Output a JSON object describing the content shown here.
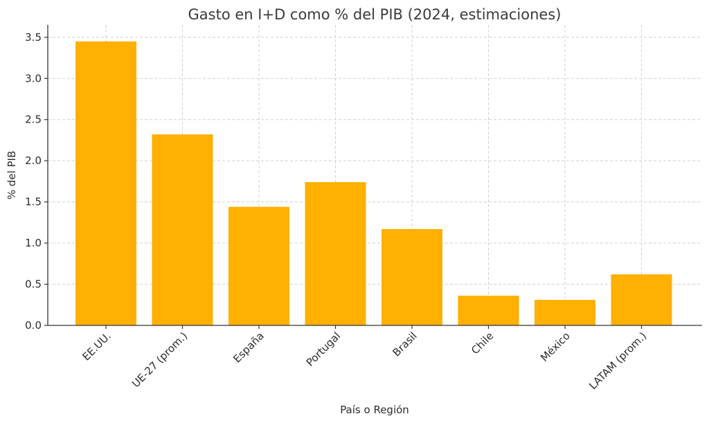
{
  "chart_data": {
    "type": "bar",
    "title": "Gasto en I+D como % del PIB (2024, estimaciones)",
    "xlabel": "País o Región",
    "ylabel": "% del PIB",
    "categories": [
      "EE.UU.",
      "UE-27 (prom.)",
      "España",
      "Portugal",
      "Brasil",
      "Chile",
      "México",
      "LATAM (prom.)"
    ],
    "values": [
      3.45,
      2.32,
      1.44,
      1.74,
      1.17,
      0.36,
      0.31,
      0.62
    ],
    "ylim": [
      0,
      3.65
    ],
    "yticks": [
      "0.0",
      "0.5",
      "1.0",
      "1.5",
      "2.0",
      "2.5",
      "3.0",
      "3.5"
    ],
    "grid": true,
    "bar_color": "#FFB000"
  }
}
